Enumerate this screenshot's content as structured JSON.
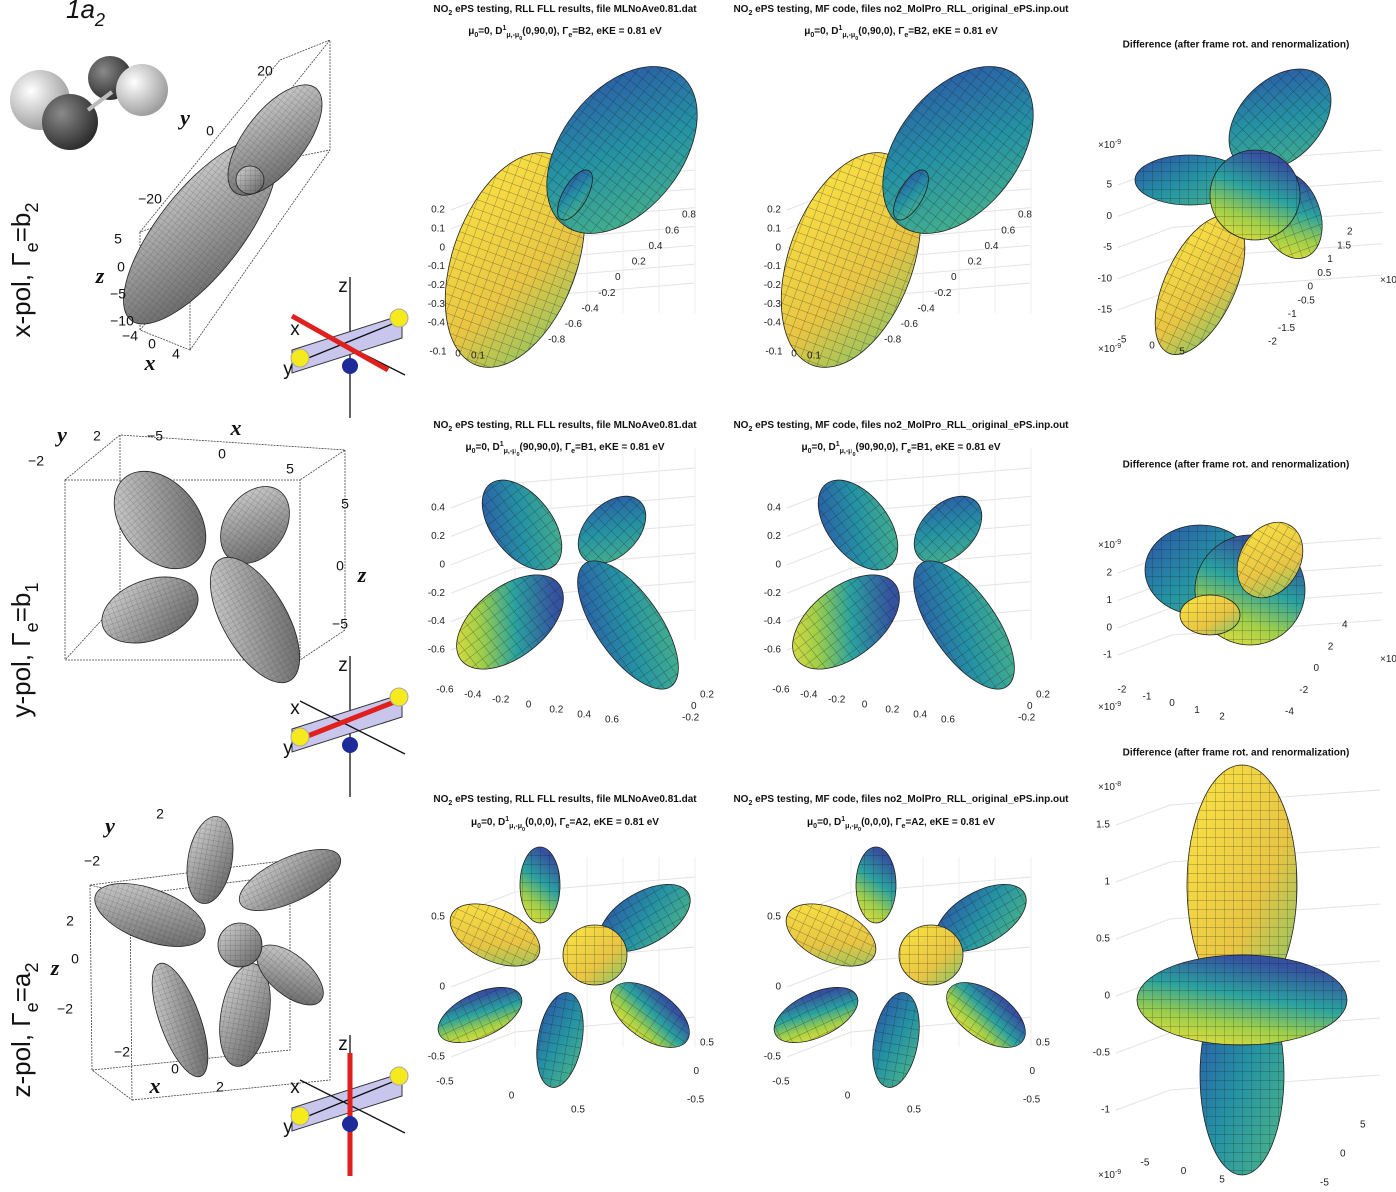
{
  "orbital": {
    "main": "1a",
    "sub": "2"
  },
  "rows": [
    {
      "label": {
        "main": "x-pol, Γ",
        "sub": "e",
        "eq": "=b",
        "sub2": "2"
      },
      "reference": {
        "axes": [
          "x",
          "y",
          "z"
        ],
        "x_ticks": [
          "−4",
          "0",
          "4"
        ],
        "y_ticks": [
          "20",
          "0",
          "−20"
        ],
        "z_ticks": [
          "5",
          "0",
          "−5",
          "−10"
        ]
      },
      "diagram": {
        "axes": [
          "z",
          "x",
          "y"
        ]
      },
      "panels": [
        {
          "title": {
            "pre": "NO",
            "sub": "2",
            "post": " ePS testing, RLL FLL results, file MLNoAve0.81.dat"
          },
          "subtitle": {
            "mu": "μ",
            "mu_sub": "0",
            "eq": "=0, D",
            "d_sup": "1",
            "d_sub": "μ,-μ",
            "d_sub_sub": "0",
            "angles": "(0,90,0), Γ",
            "g_sub": "e",
            "rest": "=B2, eKE = 0.81 eV"
          },
          "z_ticks": [
            "0.2",
            "0.1",
            "0",
            "-0.1",
            "-0.2",
            "-0.3",
            "-0.4"
          ],
          "x_ticks": [
            "-0.1",
            "0",
            "0.1"
          ],
          "y_ticks": [
            "0.8",
            "0.6",
            "0.4",
            "0.2",
            "0",
            "-0.2",
            "-0.4",
            "-0.6",
            "-0.8"
          ]
        },
        {
          "title": {
            "pre": "NO",
            "sub": "2",
            "post": " ePS testing, MF code, files no2_MolPro_RLL_original_ePS.inp.out"
          },
          "subtitle": {
            "mu": "μ",
            "mu_sub": "0",
            "eq": "=0, D",
            "d_sup": "1",
            "d_sub": "μ,-μ",
            "d_sub_sub": "0",
            "angles": "(0,90,0), Γ",
            "g_sub": "e",
            "rest": "=B2, eKE = 0.81 eV"
          },
          "z_ticks": [
            "0.2",
            "0.1",
            "0",
            "-0.1",
            "-0.2",
            "-0.3",
            "-0.4"
          ],
          "x_ticks": [
            "-0.1",
            "0",
            "0.1"
          ],
          "y_ticks": [
            "0.8",
            "0.6",
            "0.4",
            "0.2",
            "0",
            "-0.2",
            "-0.4",
            "-0.6",
            "-0.8"
          ]
        },
        {
          "title": {
            "text": "Difference (after frame rot. and renormalization)"
          },
          "z_scale": {
            "base": "×10",
            "exp": "-9"
          },
          "x_scale": {
            "base": "×10",
            "exp": "-9"
          },
          "y_scale": {
            "base": "×10",
            "exp": "-1"
          },
          "z_ticks": [
            "5",
            "0",
            "-5",
            "-10",
            "-15"
          ],
          "x_ticks": [
            "-5",
            "0",
            "5"
          ],
          "y_ticks": [
            "2",
            "1.5",
            "1",
            "0.5",
            "0",
            "-0.5",
            "-1",
            "-1.5",
            "-2"
          ]
        }
      ]
    },
    {
      "label": {
        "main": "y-pol, Γ",
        "sub": "e",
        "eq": "=b",
        "sub2": "1"
      },
      "reference": {
        "axes": [
          "x",
          "y",
          "z"
        ],
        "x_ticks": [
          "−5",
          "0",
          "5"
        ],
        "y_ticks": [
          "2",
          "−2"
        ],
        "z_ticks": [
          "5",
          "0",
          "−5"
        ]
      },
      "diagram": {
        "axes": [
          "z",
          "x",
          "y"
        ]
      },
      "panels": [
        {
          "title": {
            "pre": "NO",
            "sub": "2",
            "post": " ePS testing, RLL FLL results, file MLNoAve0.81.dat"
          },
          "subtitle": {
            "mu": "μ",
            "mu_sub": "0",
            "eq": "=0, D",
            "d_sup": "1",
            "d_sub": "μ,-μ",
            "d_sub_sub": "0",
            "angles": "(90,90,0), Γ",
            "g_sub": "e",
            "rest": "=B1, eKE = 0.81 eV"
          },
          "z_ticks": [
            "0.4",
            "0.2",
            "0",
            "-0.2",
            "-0.4",
            "-0.6"
          ],
          "x_ticks": [
            "-0.6",
            "-0.4",
            "-0.2",
            "0",
            "0.2",
            "0.4",
            "0.6"
          ],
          "y_ticks": [
            "0.2",
            "0",
            "-0.2"
          ]
        },
        {
          "title": {
            "pre": "NO",
            "sub": "2",
            "post": " ePS testing, MF code, files no2_MolPro_RLL_original_ePS.inp.out"
          },
          "subtitle": {
            "mu": "μ",
            "mu_sub": "0",
            "eq": "=0, D",
            "d_sup": "1",
            "d_sub": "μ,-μ",
            "d_sub_sub": "0",
            "angles": "(90,90,0), Γ",
            "g_sub": "e",
            "rest": "=B1, eKE = 0.81 eV"
          },
          "z_ticks": [
            "0.4",
            "0.2",
            "0",
            "-0.2",
            "-0.4",
            "-0.6"
          ],
          "x_ticks": [
            "-0.6",
            "-0.4",
            "-0.2",
            "0",
            "0.2",
            "0.4",
            "0.6"
          ],
          "y_ticks": [
            "0.2",
            "0",
            "-0.2"
          ]
        },
        {
          "title": {
            "text": "Difference (after frame rot. and renormalization)"
          },
          "z_scale": {
            "base": "×10",
            "exp": "-9"
          },
          "x_scale": {
            "base": "×10",
            "exp": "-9"
          },
          "y_scale": {
            "base": "×10",
            "exp": "-1"
          },
          "z_ticks": [
            "2",
            "1",
            "0",
            "-1"
          ],
          "x_ticks": [
            "-2",
            "-1",
            "0",
            "1",
            "2"
          ],
          "y_ticks": [
            "4",
            "2",
            "0",
            "-2",
            "-4"
          ]
        }
      ]
    },
    {
      "label": {
        "main": "z-pol, Γ",
        "sub": "e",
        "eq": "=a",
        "sub2": "2"
      },
      "reference": {
        "axes": [
          "x",
          "y",
          "z"
        ],
        "x_ticks": [
          "−2",
          "0",
          "2"
        ],
        "y_ticks": [
          "2",
          "−2"
        ],
        "z_ticks": [
          "2",
          "0",
          "−2"
        ]
      },
      "diagram": {
        "axes": [
          "z",
          "x",
          "y"
        ]
      },
      "panels": [
        {
          "title": {
            "pre": "NO",
            "sub": "2",
            "post": " ePS testing, RLL FLL results, file MLNoAve0.81.dat"
          },
          "subtitle": {
            "mu": "μ",
            "mu_sub": "0",
            "eq": "=0, D",
            "d_sup": "1",
            "d_sub": "μ,-μ",
            "d_sub_sub": "0",
            "angles": "(0,0,0), Γ",
            "g_sub": "e",
            "rest": "=A2, eKE = 0.81 eV"
          },
          "z_ticks": [
            "0.5",
            "0",
            "-0.5"
          ],
          "x_ticks": [
            "-0.5",
            "0",
            "0.5"
          ],
          "y_ticks": [
            "0.5",
            "0",
            "-0.5"
          ]
        },
        {
          "title": {
            "pre": "NO",
            "sub": "2",
            "post": " ePS testing, MF code, files no2_MolPro_RLL_original_ePS.inp.out"
          },
          "subtitle": {
            "mu": "μ",
            "mu_sub": "0",
            "eq": "=0, D",
            "d_sup": "1",
            "d_sub": "μ,-μ",
            "d_sub_sub": "0",
            "angles": "(0,0,0), Γ",
            "g_sub": "e",
            "rest": "=A2, eKE = 0.81 eV"
          },
          "z_ticks": [
            "0.5",
            "0",
            "-0.5"
          ],
          "x_ticks": [
            "-0.5",
            "0",
            "0.5"
          ],
          "y_ticks": [
            "0.5",
            "0",
            "-0.5"
          ]
        },
        {
          "title": {
            "text": "Difference (after frame rot. and renormalization)"
          },
          "z_scale": {
            "base": "×10",
            "exp": "-8"
          },
          "x_scale": {
            "base": "×10",
            "exp": "-9"
          },
          "z_ticks": [
            "1.5",
            "1",
            "0.5",
            "0",
            "-0.5",
            "-1"
          ],
          "x_ticks": [
            "-5",
            "0",
            "5"
          ],
          "y_ticks": [
            "5",
            "0",
            "-5"
          ]
        }
      ]
    }
  ]
}
